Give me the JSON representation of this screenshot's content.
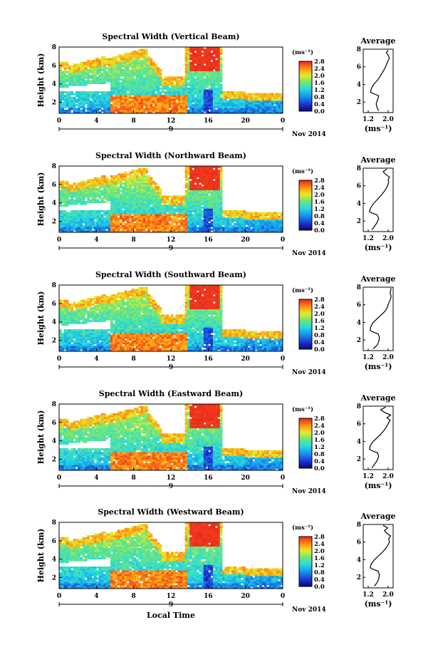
{
  "chart_data": [
    {
      "type": "heatmap",
      "title": "Spectral Width (Vertical Beam)",
      "ylabel": "Height (km)",
      "xlabel": "",
      "x_ticks": [
        "0",
        "4",
        "8",
        "12",
        "16",
        "20",
        "0"
      ],
      "x_range": [
        0,
        24
      ],
      "y_ticks": [
        "2",
        "4",
        "6",
        "8"
      ],
      "y_range": [
        0.8,
        8.0
      ],
      "date_day": "9",
      "date_label": "Nov 2014",
      "colorbar": {
        "unit": "(ms⁻¹)",
        "ticks": [
          "0.0",
          "0.4",
          "0.8",
          "1.2",
          "1.6",
          "2.0",
          "2.4",
          "2.8"
        ],
        "range": [
          0,
          2.8
        ]
      },
      "average_profile": {
        "title": "Average",
        "xlabel": "(ms⁻¹)",
        "x_ticks": [
          "1.2",
          "2.0"
        ],
        "x_range": [
          1.0,
          2.2
        ],
        "y_ticks": [
          "2",
          "4",
          "6",
          "8"
        ],
        "y_range": [
          0.8,
          8.0
        ],
        "x": [
          1.62,
          1.55,
          1.52,
          1.58,
          1.62,
          1.45,
          1.3,
          1.32,
          1.42,
          1.55,
          1.65,
          1.74,
          1.82,
          1.9,
          1.95,
          2.0,
          2.05,
          2.0,
          1.93,
          2.0
        ],
        "y": [
          1.0,
          1.4,
          1.8,
          2.3,
          2.7,
          2.9,
          3.1,
          3.5,
          4.0,
          4.4,
          4.8,
          5.2,
          5.6,
          6.0,
          6.4,
          6.7,
          7.0,
          7.3,
          7.6,
          7.9
        ]
      }
    },
    {
      "type": "heatmap",
      "title": "Spectral Width (Northward Beam)",
      "ylabel": "Height (km)",
      "xlabel": "",
      "x_ticks": [
        "0",
        "4",
        "8",
        "12",
        "16",
        "20",
        "0"
      ],
      "x_range": [
        0,
        24
      ],
      "y_ticks": [
        "2",
        "4",
        "6",
        "8"
      ],
      "y_range": [
        0.8,
        8.0
      ],
      "date_day": "9",
      "date_label": "Nov 2014",
      "colorbar": {
        "unit": "(ms⁻¹)",
        "ticks": [
          "0.0",
          "0.4",
          "0.8",
          "1.2",
          "1.6",
          "2.0",
          "2.4",
          "2.8"
        ],
        "range": [
          0,
          2.8
        ]
      },
      "average_profile": {
        "title": "Average",
        "xlabel": "(ms⁻¹)",
        "x_ticks": [
          "1.2",
          "2.0"
        ],
        "x_range": [
          1.0,
          2.2
        ],
        "y_ticks": [
          "2",
          "4",
          "6",
          "8"
        ],
        "y_range": [
          0.8,
          8.0
        ],
        "x": [
          1.35,
          1.45,
          1.55,
          1.62,
          1.55,
          1.35,
          1.25,
          1.3,
          1.42,
          1.55,
          1.68,
          1.8,
          1.9,
          1.98,
          2.02,
          2.0,
          2.05,
          1.9,
          1.8,
          1.95
        ],
        "y": [
          1.0,
          1.4,
          1.8,
          2.3,
          2.7,
          2.9,
          3.1,
          3.5,
          4.0,
          4.4,
          4.8,
          5.2,
          5.6,
          6.0,
          6.4,
          6.7,
          7.0,
          7.3,
          7.6,
          7.9
        ]
      }
    },
    {
      "type": "heatmap",
      "title": "Spectral Width (Southward Beam)",
      "ylabel": "Height (km)",
      "xlabel": "",
      "x_ticks": [
        "0",
        "4",
        "8",
        "12",
        "16",
        "20",
        "0"
      ],
      "x_range": [
        0,
        24
      ],
      "y_ticks": [
        "2",
        "4",
        "6",
        "8"
      ],
      "y_range": [
        0.8,
        8.0
      ],
      "date_day": "9",
      "date_label": "Nov 2014",
      "colorbar": {
        "unit": "(ms⁻¹)",
        "ticks": [
          "0.0",
          "0.4",
          "0.8",
          "1.2",
          "1.6",
          "2.0",
          "2.4",
          "2.8"
        ],
        "range": [
          0,
          2.8
        ]
      },
      "average_profile": {
        "title": "Average",
        "xlabel": "(ms⁻¹)",
        "x_ticks": [
          "1.2",
          "2.0"
        ],
        "x_range": [
          1.0,
          2.2
        ],
        "y_ticks": [
          "2",
          "4",
          "6",
          "8"
        ],
        "y_range": [
          0.8,
          8.0
        ],
        "x": [
          1.4,
          1.55,
          1.62,
          1.65,
          1.6,
          1.4,
          1.28,
          1.3,
          1.4,
          1.55,
          1.7,
          1.85,
          1.95,
          2.0,
          2.05,
          2.1,
          2.12,
          2.08,
          2.1,
          2.12
        ],
        "y": [
          1.0,
          1.4,
          1.8,
          2.3,
          2.7,
          2.9,
          3.1,
          3.5,
          4.0,
          4.4,
          4.8,
          5.2,
          5.6,
          6.0,
          6.4,
          6.7,
          7.0,
          7.3,
          7.6,
          7.9
        ]
      }
    },
    {
      "type": "heatmap",
      "title": "Spectral Width (Eastward Beam)",
      "ylabel": "Height (km)",
      "xlabel": "",
      "x_ticks": [
        "0",
        "4",
        "8",
        "12",
        "16",
        "20",
        "0"
      ],
      "x_range": [
        0,
        24
      ],
      "y_ticks": [
        "2",
        "4",
        "6",
        "8"
      ],
      "y_range": [
        0.8,
        8.0
      ],
      "date_day": "9",
      "date_label": "Nov 2014",
      "colorbar": {
        "unit": "(ms⁻¹)",
        "ticks": [
          "0.0",
          "0.4",
          "0.8",
          "1.2",
          "1.6",
          "2.0",
          "2.4",
          "2.8"
        ],
        "range": [
          0,
          2.8
        ]
      },
      "average_profile": {
        "title": "Average",
        "xlabel": "(ms⁻¹)",
        "x_ticks": [
          "1.2",
          "2.0"
        ],
        "x_range": [
          1.0,
          2.2
        ],
        "y_ticks": [
          "2",
          "4",
          "6",
          "8"
        ],
        "y_range": [
          0.8,
          8.0
        ],
        "x": [
          1.35,
          1.45,
          1.55,
          1.62,
          1.58,
          1.38,
          1.25,
          1.28,
          1.4,
          1.55,
          1.7,
          1.82,
          1.92,
          2.0,
          2.08,
          1.95,
          2.1,
          1.85,
          1.7,
          1.9
        ],
        "y": [
          1.0,
          1.4,
          1.8,
          2.3,
          2.7,
          2.9,
          3.1,
          3.5,
          4.0,
          4.4,
          4.8,
          5.2,
          5.6,
          6.0,
          6.4,
          6.7,
          7.0,
          7.3,
          7.6,
          7.9
        ]
      }
    },
    {
      "type": "heatmap",
      "title": "Spectral Width (Westward Beam)",
      "ylabel": "Height (km)",
      "xlabel": "Local Time",
      "x_ticks": [
        "0",
        "4",
        "8",
        "12",
        "16",
        "20",
        "0"
      ],
      "x_range": [
        0,
        24
      ],
      "y_ticks": [
        "2",
        "4",
        "6",
        "8"
      ],
      "y_range": [
        0.8,
        8.0
      ],
      "date_day": "9",
      "date_label": "Nov 2014",
      "colorbar": {
        "unit": "(ms⁻¹)",
        "ticks": [
          "0.0",
          "0.4",
          "0.8",
          "1.2",
          "1.6",
          "2.0",
          "2.4",
          "2.8"
        ],
        "range": [
          0,
          2.8
        ]
      },
      "average_profile": {
        "title": "Average",
        "xlabel": "(ms⁻¹)",
        "x_ticks": [
          "1.2",
          "2.0"
        ],
        "x_range": [
          1.0,
          2.2
        ],
        "y_ticks": [
          "2",
          "4",
          "6",
          "8"
        ],
        "y_range": [
          0.8,
          8.0
        ],
        "x": [
          1.45,
          1.55,
          1.62,
          1.65,
          1.6,
          1.4,
          1.28,
          1.32,
          1.45,
          1.6,
          1.75,
          1.88,
          1.98,
          2.05,
          2.02,
          2.1,
          1.95,
          1.85,
          1.98,
          1.8
        ],
        "y": [
          1.0,
          1.4,
          1.8,
          2.3,
          2.7,
          2.9,
          3.1,
          3.5,
          4.0,
          4.4,
          4.8,
          5.2,
          5.6,
          6.0,
          6.4,
          6.7,
          7.0,
          7.3,
          7.6,
          7.9
        ]
      }
    }
  ]
}
